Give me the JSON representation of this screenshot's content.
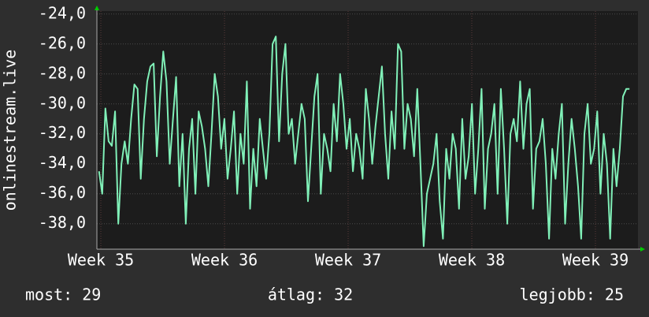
{
  "chart_data": {
    "type": "line",
    "y_label": "onlinestream.live",
    "x": [
      34.985,
      35.011,
      35.037,
      35.063,
      35.089,
      35.115,
      35.141,
      35.167,
      35.193,
      35.219,
      35.245,
      35.271,
      35.297,
      35.323,
      35.349,
      35.375,
      35.401,
      35.427,
      35.453,
      35.479,
      35.505,
      35.531,
      35.557,
      35.583,
      35.609,
      35.635,
      35.661,
      35.687,
      35.713,
      35.739,
      35.765,
      35.791,
      35.817,
      35.843,
      35.869,
      35.895,
      35.921,
      35.947,
      35.973,
      35.999,
      36.025,
      36.051,
      36.077,
      36.103,
      36.129,
      36.155,
      36.181,
      36.207,
      36.233,
      36.259,
      36.285,
      36.311,
      36.337,
      36.363,
      36.389,
      36.415,
      36.441,
      36.467,
      36.493,
      36.519,
      36.545,
      36.571,
      36.597,
      36.623,
      36.649,
      36.675,
      36.701,
      36.727,
      36.753,
      36.779,
      36.805,
      36.831,
      36.857,
      36.883,
      36.909,
      36.935,
      36.961,
      36.987,
      37.013,
      37.039,
      37.065,
      37.091,
      37.117,
      37.143,
      37.169,
      37.195,
      37.221,
      37.247,
      37.273,
      37.299,
      37.325,
      37.351,
      37.377,
      37.403,
      37.429,
      37.455,
      37.481,
      37.507,
      37.533,
      37.559,
      37.585,
      37.611,
      37.637,
      37.663,
      37.689,
      37.715,
      37.741,
      37.767,
      37.793,
      37.819,
      37.845,
      37.871,
      37.897,
      37.923,
      37.949,
      37.975,
      38.001,
      38.027,
      38.053,
      38.079,
      38.105,
      38.131,
      38.157,
      38.183,
      38.209,
      38.235,
      38.261,
      38.287,
      38.313,
      38.339,
      38.365,
      38.391,
      38.417,
      38.443,
      38.469,
      38.495,
      38.521,
      38.547,
      38.573,
      38.599,
      38.625,
      38.651,
      38.677,
      38.703,
      38.729,
      38.755,
      38.781,
      38.807,
      38.833,
      38.859,
      38.885,
      38.911,
      38.937,
      38.963,
      38.989,
      39.015,
      39.041,
      39.067,
      39.093,
      39.119,
      39.145,
      39.171,
      39.197,
      39.223,
      39.249,
      39.275
    ],
    "series": [
      {
        "name": "onlinestream.live",
        "color": "#80f0b8",
        "values": [
          -34.5,
          -36,
          -30.3,
          -32.5,
          -32.8,
          -30.5,
          -38,
          -34,
          -32.5,
          -34,
          -31,
          -28.7,
          -29,
          -35,
          -31,
          -28.5,
          -27.5,
          -27.3,
          -33.5,
          -29.5,
          -26.5,
          -28.5,
          -34,
          -31,
          -28.2,
          -35.5,
          -32,
          -38,
          -33,
          -31,
          -36,
          -30.5,
          -31.5,
          -33,
          -35.5,
          -32,
          -28,
          -29.5,
          -33,
          -31,
          -35,
          -33,
          -30.5,
          -36,
          -32,
          -34,
          -28.5,
          -37,
          -33,
          -35.5,
          -31,
          -33,
          -35,
          -32,
          -26,
          -25.5,
          -32.5,
          -28,
          -26,
          -32,
          -31,
          -34,
          -32,
          -30,
          -31,
          -36.5,
          -33,
          -29.5,
          -28,
          -36,
          -32,
          -33,
          -34.5,
          -30,
          -32.5,
          -28,
          -30,
          -33,
          -31,
          -34.5,
          -32,
          -33,
          -35,
          -29,
          -31,
          -34,
          -31.5,
          -29.5,
          -27.5,
          -32,
          -35,
          -30.5,
          -33,
          -26,
          -26.5,
          -33,
          -30,
          -31,
          -33.5,
          -29,
          -34,
          -39.5,
          -36,
          -35,
          -34,
          -32,
          -36.5,
          -39,
          -33,
          -35,
          -32,
          -33,
          -37,
          -31,
          -35,
          -33.5,
          -30,
          -36,
          -33,
          -29,
          -37,
          -33,
          -32,
          -30,
          -36,
          -29,
          -33,
          -38,
          -32,
          -31,
          -32.5,
          -28.5,
          -33,
          -30,
          -29,
          -37,
          -33,
          -32.5,
          -31,
          -34,
          -39,
          -33,
          -35,
          -32,
          -30,
          -38,
          -34,
          -31,
          -33,
          -35.5,
          -39,
          -32,
          -30,
          -34,
          -33,
          -30.5,
          -36,
          -32,
          -34,
          -39,
          -33,
          -35.5,
          -33,
          -29.5,
          -29,
          -29
        ]
      }
    ],
    "xlim": [
      34.968,
      39.344
    ],
    "xticks": [
      {
        "value": 35,
        "label": "Week 35"
      },
      {
        "value": 36,
        "label": "Week 36"
      },
      {
        "value": 37,
        "label": "Week 37"
      },
      {
        "value": 38,
        "label": "Week 38"
      },
      {
        "value": 39,
        "label": "Week 39"
      }
    ],
    "ylim": [
      -39.7,
      -23.8
    ],
    "yticks": [
      {
        "value": -38,
        "label": "-38,0"
      },
      {
        "value": -36,
        "label": "-36,0"
      },
      {
        "value": -34,
        "label": "-34,0"
      },
      {
        "value": -32,
        "label": "-32,0"
      },
      {
        "value": -30,
        "label": "-30,0"
      },
      {
        "value": -28,
        "label": "-28,0"
      },
      {
        "value": -26,
        "label": "-26,0"
      },
      {
        "value": -24,
        "label": "-24,0"
      }
    ],
    "grid": true,
    "stats": [
      "most: 29",
      "átlag: 32",
      "legjobb: 25"
    ]
  }
}
